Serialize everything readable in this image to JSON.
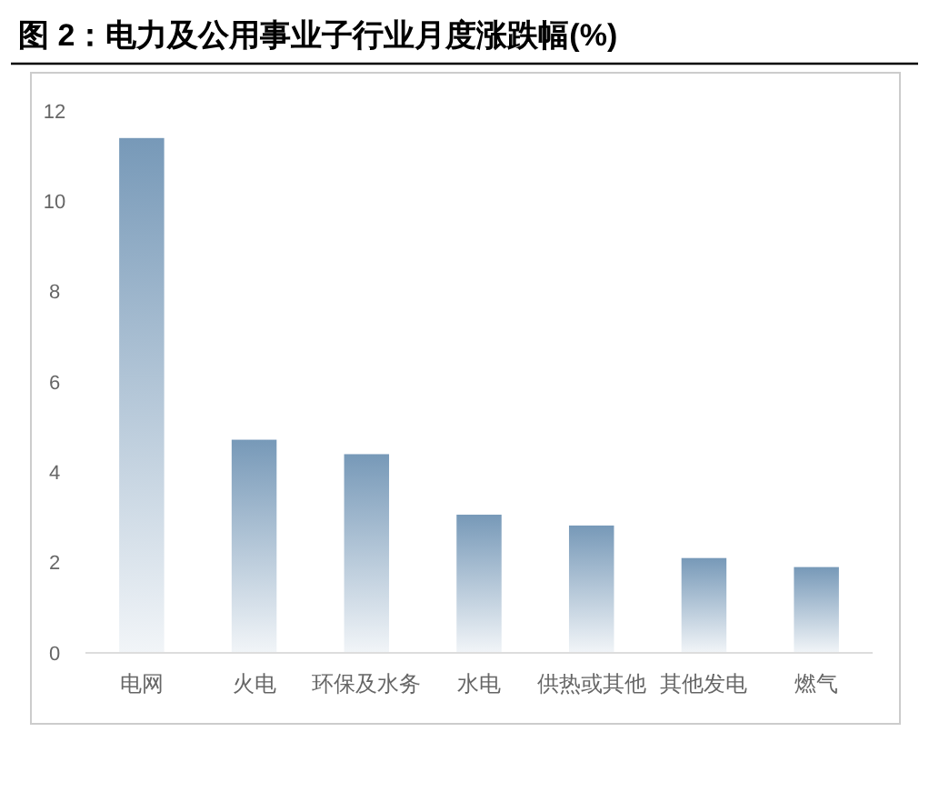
{
  "chart_data": {
    "type": "bar",
    "title": "图 2：电力及公用事业子行业月度涨跌幅(%)",
    "categories": [
      "电网",
      "火电",
      "环保及水务",
      "水电",
      "供热或其他",
      "其他发电",
      "燃气"
    ],
    "values": [
      11.4,
      4.72,
      4.4,
      3.06,
      2.82,
      2.1,
      1.9
    ],
    "color": "#7799b8",
    "ylim": [
      0,
      12
    ],
    "yticks": [
      0,
      2,
      4,
      6,
      8,
      10,
      12
    ],
    "grid": false
  }
}
